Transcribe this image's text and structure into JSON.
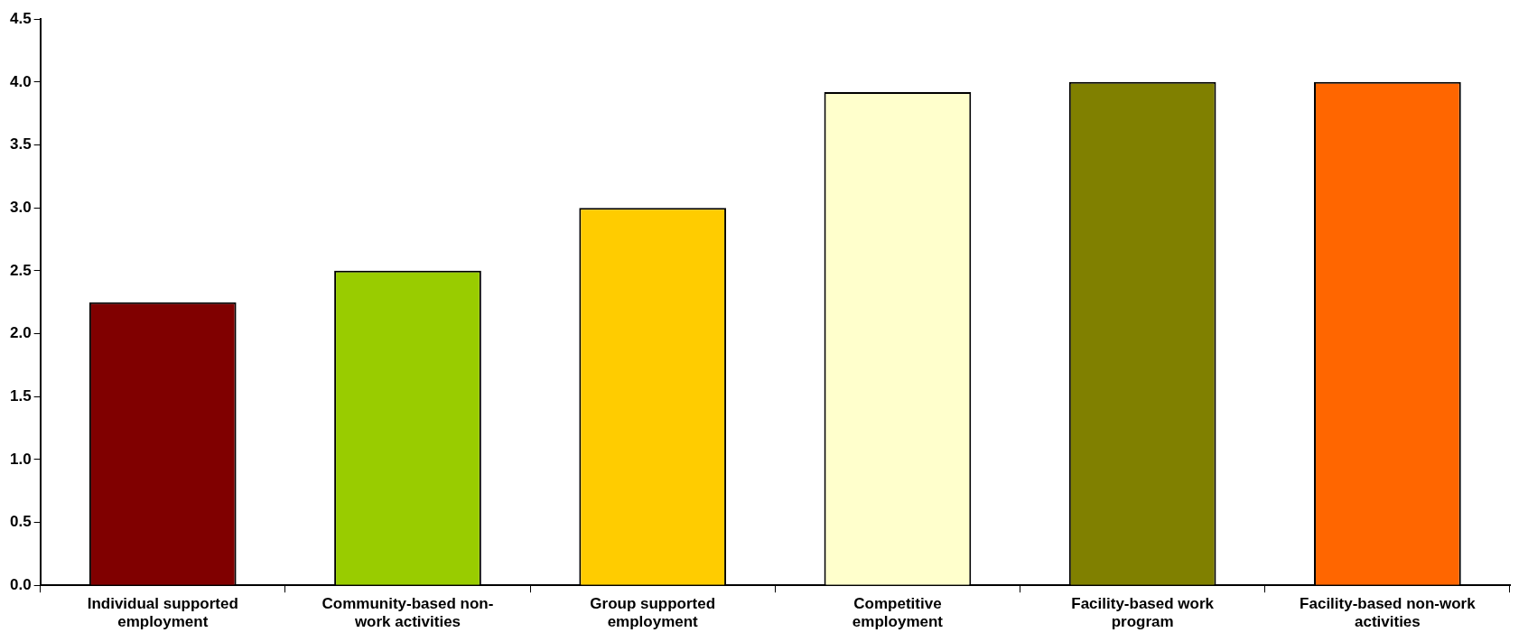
{
  "chart_data": {
    "type": "bar",
    "categories": [
      "Individual supported employment",
      "Community-based non-work activities",
      "Group supported employment",
      "Competitive employment",
      "Facility-based work program",
      "Facility-based non-work activities"
    ],
    "values": [
      2.25,
      2.5,
      3.0,
      3.92,
      4.0,
      4.0
    ],
    "colors": [
      "#800000",
      "#99cc00",
      "#ffcc00",
      "#ffffcc",
      "#808000",
      "#ff6600"
    ],
    "ylim": [
      0,
      4.5
    ],
    "yticks": [
      {
        "value": 0,
        "label": "0.0"
      },
      {
        "value": 0.5,
        "label": "0.5"
      },
      {
        "value": 1,
        "label": "1.0"
      },
      {
        "value": 1.5,
        "label": "1.5"
      },
      {
        "value": 2,
        "label": "2.0"
      },
      {
        "value": 2.5,
        "label": "2.5"
      },
      {
        "value": 3,
        "label": "3.0"
      },
      {
        "value": 3.5,
        "label": "3.5"
      },
      {
        "value": 4,
        "label": "4.0"
      },
      {
        "value": 4.5,
        "label": "4.5"
      }
    ],
    "grid": false,
    "legend": false
  }
}
